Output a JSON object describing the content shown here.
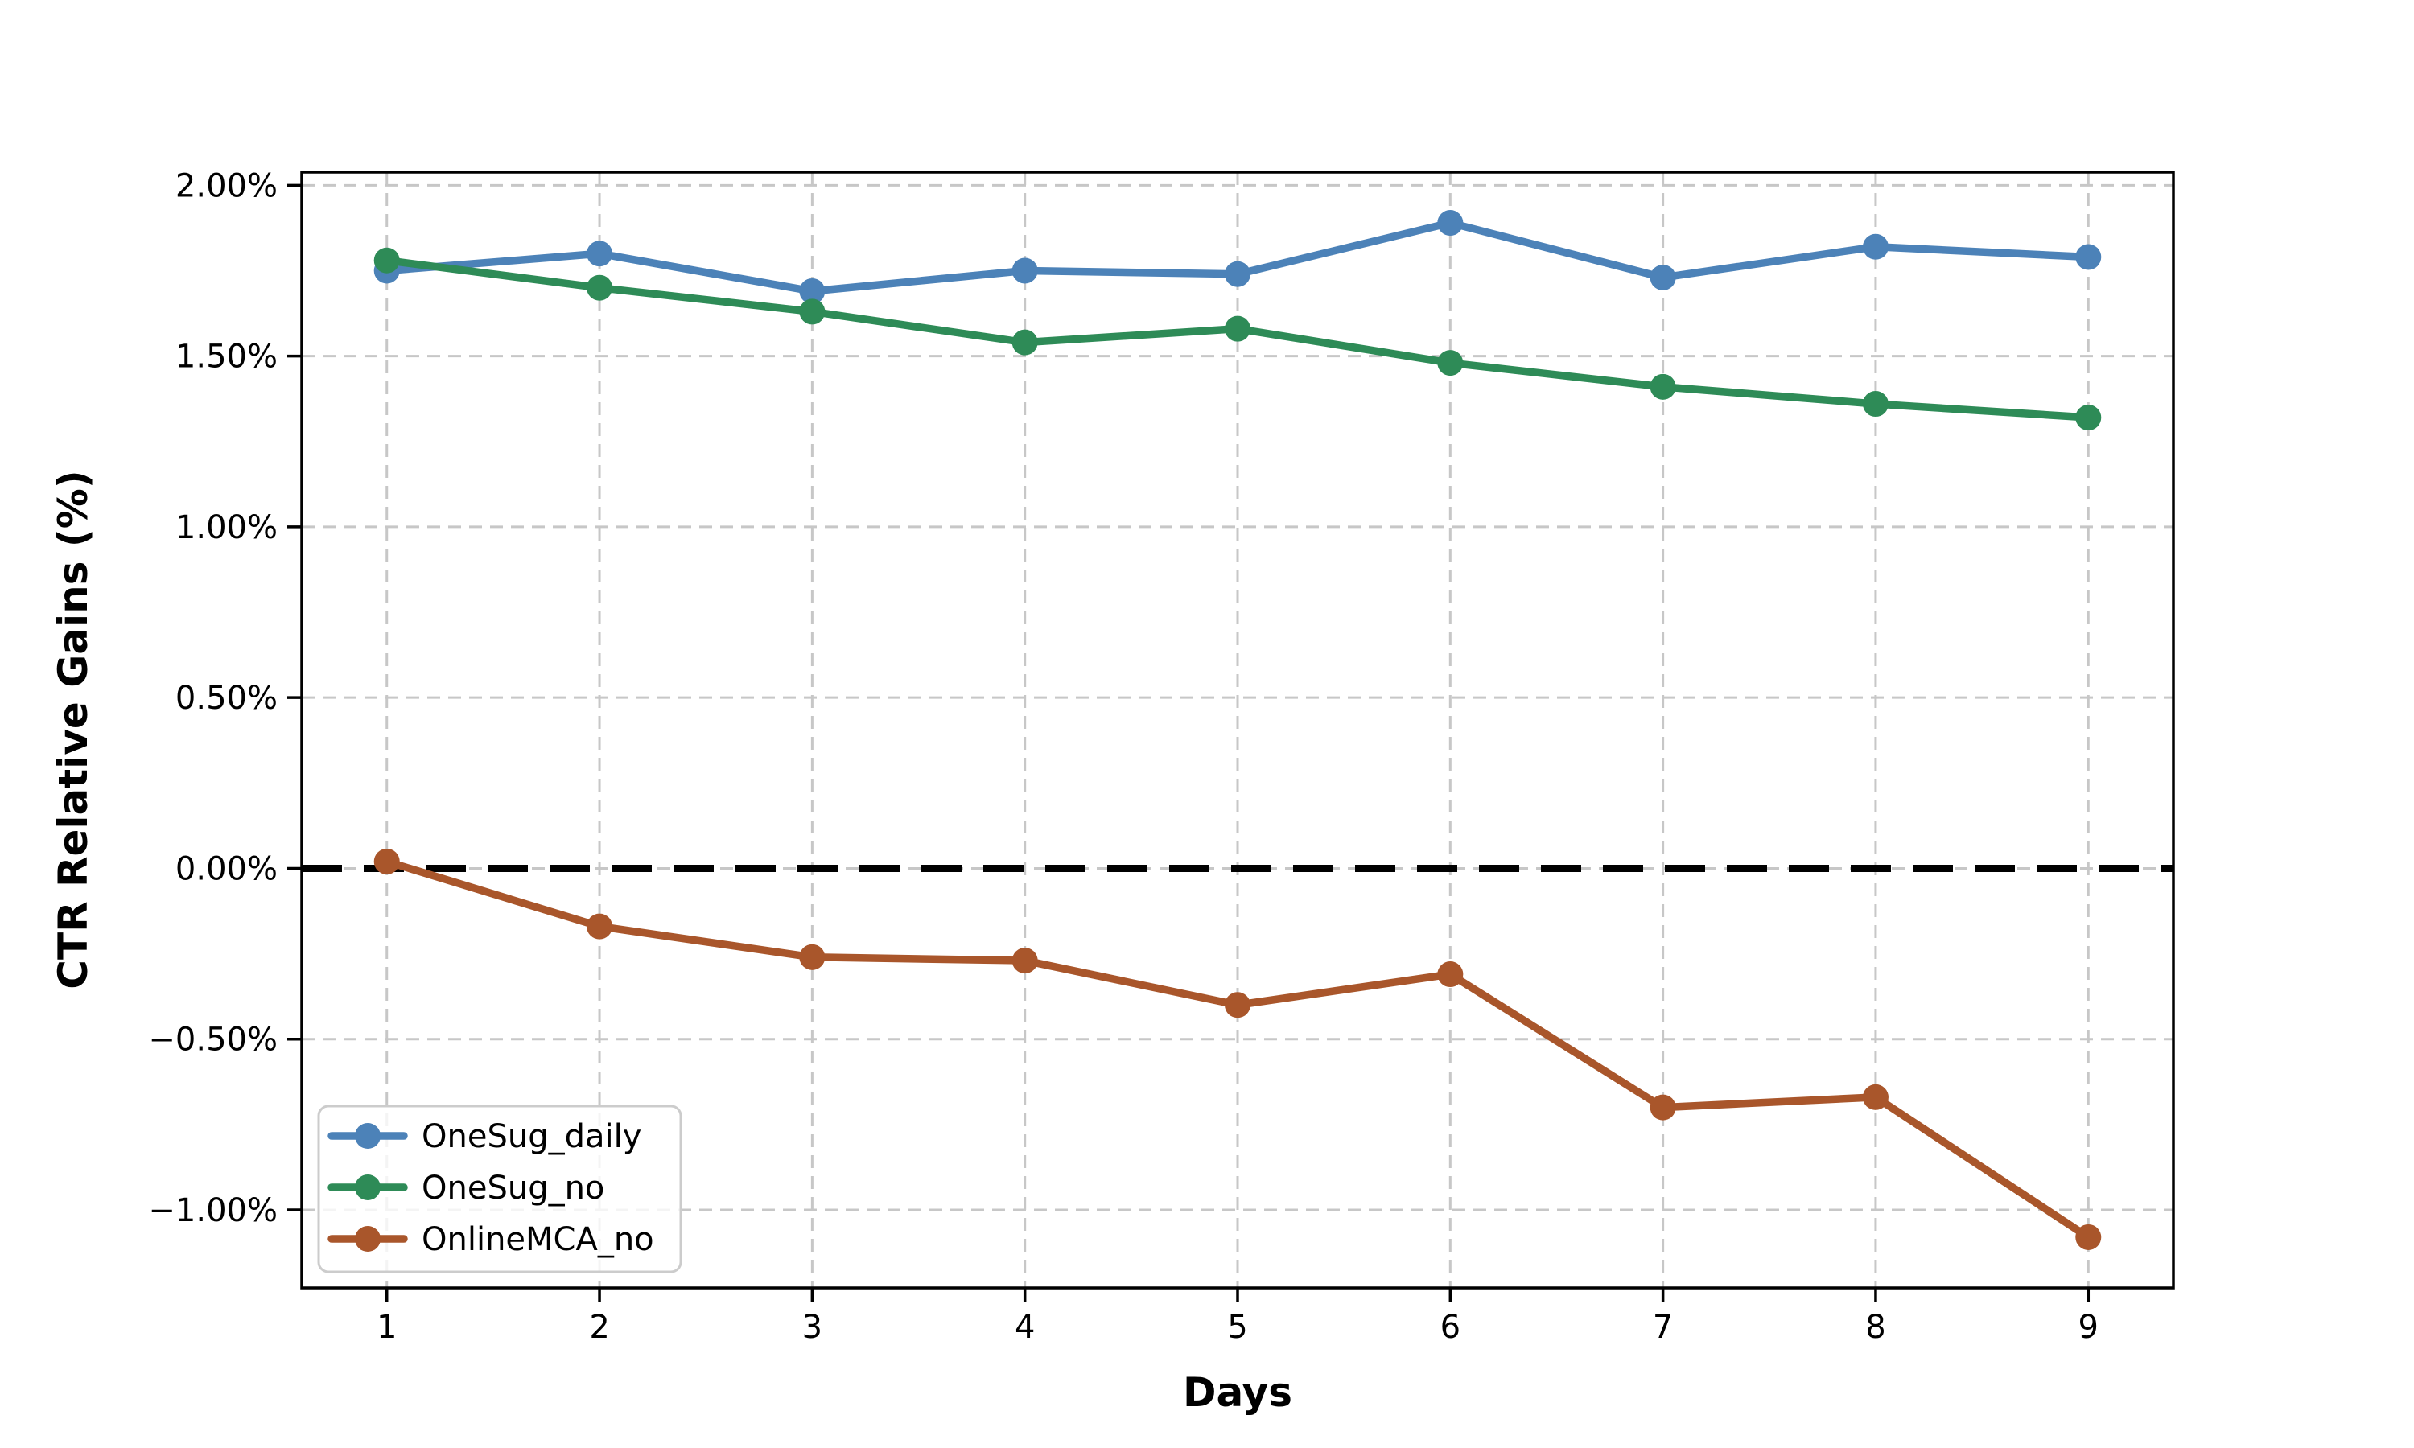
{
  "chart_data": {
    "type": "line",
    "title": "",
    "xlabel": "Days",
    "ylabel": "CTR Relative Gains (%)",
    "x": [
      1,
      2,
      3,
      4,
      5,
      6,
      7,
      8,
      9
    ],
    "series": [
      {
        "name": "OneSug_daily",
        "color": "#4c82b8",
        "values": [
          1.75,
          1.8,
          1.69,
          1.75,
          1.74,
          1.89,
          1.73,
          1.82,
          1.79
        ]
      },
      {
        "name": "OneSug_no",
        "color": "#2e8b57",
        "values": [
          1.78,
          1.7,
          1.63,
          1.54,
          1.58,
          1.48,
          1.41,
          1.36,
          1.32
        ]
      },
      {
        "name": "OnlineMCA_no",
        "color": "#a9562b",
        "values": [
          0.02,
          -0.17,
          -0.26,
          -0.27,
          -0.4,
          -0.31,
          -0.7,
          -0.67,
          -1.08
        ]
      }
    ],
    "xticks": {
      "values": [
        1,
        2,
        3,
        4,
        5,
        6,
        7,
        8,
        9
      ],
      "labels": [
        "1",
        "2",
        "3",
        "4",
        "5",
        "6",
        "7",
        "8",
        "9"
      ]
    },
    "yticks": {
      "values": [
        2.0,
        1.5,
        1.0,
        0.5,
        0.0,
        -0.5,
        -1.0
      ],
      "labels": [
        "2.00%",
        "1.50%",
        "1.00%",
        "0.50%",
        "0.00%",
        "−0.50%",
        "−1.00%"
      ]
    },
    "xlim": [
      0.6,
      9.4
    ],
    "ylim": [
      -1.2285,
      2.0385
    ],
    "grid": {
      "visible": true,
      "style": "dashed",
      "color": "#c7c7c7"
    },
    "reference_line": {
      "y": 0.0,
      "color": "#000000",
      "style": "dashed"
    },
    "legend": {
      "position": "lower left",
      "entries": [
        "OneSug_daily",
        "OneSug_no",
        "OnlineMCA_no"
      ]
    },
    "marker": "circle",
    "axis_color": "#000000"
  }
}
